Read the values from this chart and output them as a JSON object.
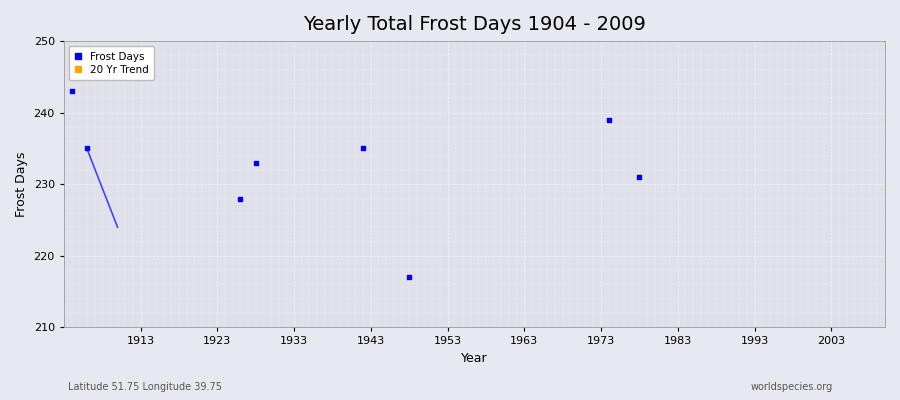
{
  "title": "Yearly Total Frost Days 1904 - 2009",
  "xlabel": "Year",
  "ylabel": "Frost Days",
  "xlim": [
    1903,
    2010
  ],
  "ylim": [
    210,
    250
  ],
  "yticks": [
    210,
    220,
    230,
    240,
    250
  ],
  "xticks": [
    1913,
    1923,
    1933,
    1943,
    1953,
    1963,
    1973,
    1983,
    1993,
    2003
  ],
  "bg_color": "#e8e8f0",
  "plot_bg_color": "#e0e0ea",
  "grid_color": "#f5f5f5",
  "frost_days_x": [
    1904,
    1906,
    1926,
    1928,
    1942,
    1948,
    1974,
    1978
  ],
  "frost_days_y": [
    243,
    235,
    228,
    233,
    235,
    217,
    239,
    231
  ],
  "trend_x": [
    1906,
    1910
  ],
  "trend_y": [
    235,
    224
  ],
  "point_color": "#0000ee",
  "trend_color": "#4444ff",
  "legend_frost_color": "#0000ff",
  "legend_trend_color": "#ffa500",
  "subtitle_left": "Latitude 51.75 Longitude 39.75",
  "subtitle_right": "worldspecies.org",
  "title_fontsize": 14,
  "label_fontsize": 9,
  "tick_fontsize": 8,
  "fig_width": 9.0,
  "fig_height": 4.0,
  "dpi": 100
}
